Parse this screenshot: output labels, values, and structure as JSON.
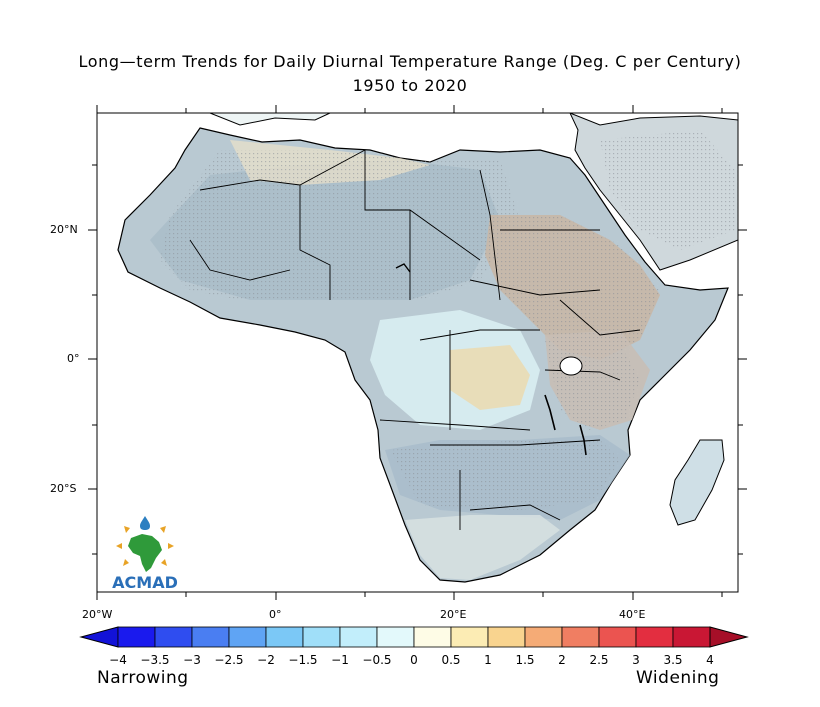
{
  "title": "Long—term Trends for Daily Diurnal Temperature Range (Deg. C per Century)",
  "subtitle": "1950 to 2020",
  "axes": {
    "lat_labels": [
      "20°N",
      "0°",
      "20°S"
    ],
    "lon_labels": [
      "20°W",
      "0°",
      "20°E",
      "40°E"
    ]
  },
  "colorbar": {
    "ticks": [
      "−4",
      "−3.5",
      "−3",
      "−2.5",
      "−2",
      "−1.5",
      "−1",
      "−0.5",
      "0",
      "0.5",
      "1",
      "1.5",
      "2",
      "2.5",
      "3",
      "3.5",
      "4"
    ],
    "colors": [
      "#1a1aee",
      "#2f4df0",
      "#4a7ef2",
      "#5fa4f4",
      "#7bc8f6",
      "#a0dff9",
      "#c2eefb",
      "#e3f9fb",
      "#fefce6",
      "#fcecb4",
      "#f9d48f",
      "#f5ab76",
      "#f07e62",
      "#eb5450",
      "#e32e40",
      "#c91734"
    ],
    "under_color": "#1212d8",
    "over_color": "#a60f28",
    "left_label": "Narrowing",
    "right_label": "Widening"
  },
  "logo": {
    "text": "ACMAD"
  }
}
